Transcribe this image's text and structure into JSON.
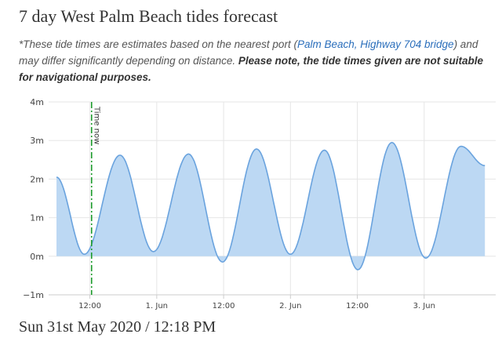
{
  "page": {
    "title": "7 day West Palm Beach tides forecast",
    "note_prefix": "*These tide times are estimates based on the nearest port (",
    "port_link": "Palm Beach, Highway 704 bridge",
    "note_suffix": ") and may differ significantly depending on distance. ",
    "note_warning": "Please note, the tide times given are not suitable for navigational purposes.",
    "footer": "Sun 31st May 2020 / 12:18 PM"
  },
  "colors": {
    "line": "#6aa3de",
    "fill": "#bcd8f3",
    "now_line": "#1a9a2a",
    "grid": "#e6e6e6"
  },
  "chart_data": {
    "type": "area",
    "ylim": [
      -1,
      4
    ],
    "y_ticks": [
      {
        "value": 4,
        "label": "4m"
      },
      {
        "value": 3,
        "label": "3m"
      },
      {
        "value": 2,
        "label": "2m"
      },
      {
        "value": 1,
        "label": "1m"
      },
      {
        "value": 0,
        "label": "0m"
      },
      {
        "value": -1,
        "label": "−1m"
      }
    ],
    "x_range_hours": [
      -6,
      72
    ],
    "x_ticks": [
      {
        "hour": 0,
        "label": "12:00"
      },
      {
        "hour": 12,
        "label": "1. Jun"
      },
      {
        "hour": 24,
        "label": "12:00"
      },
      {
        "hour": 36,
        "label": "2. Jun"
      },
      {
        "hour": 48,
        "label": "12:00"
      },
      {
        "hour": 60,
        "label": "3. Jun"
      }
    ],
    "now_hour": 0.3,
    "now_label": "Time now",
    "extremes": [
      {
        "hour": -6,
        "height": 2.05
      },
      {
        "hour": -1,
        "height": 0.05
      },
      {
        "hour": 5.4,
        "height": 2.62
      },
      {
        "hour": 11.4,
        "height": 0.12
      },
      {
        "hour": 17.7,
        "height": 2.65
      },
      {
        "hour": 23.8,
        "height": -0.15
      },
      {
        "hour": 29.9,
        "height": 2.78
      },
      {
        "hour": 36.0,
        "height": 0.05
      },
      {
        "hour": 42.1,
        "height": 2.75
      },
      {
        "hour": 48.1,
        "height": -0.35
      },
      {
        "hour": 54.2,
        "height": 2.95
      },
      {
        "hour": 60.3,
        "height": -0.05
      },
      {
        "hour": 66.6,
        "height": 2.85
      },
      {
        "hour": 70.9,
        "height": 2.35
      }
    ]
  }
}
